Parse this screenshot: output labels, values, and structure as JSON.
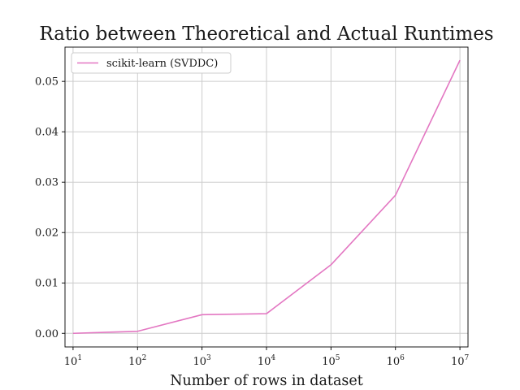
{
  "chart_data": {
    "type": "line",
    "title": "Ratio between Theoretical and Actual Runtimes",
    "xlabel": "Number of rows in dataset",
    "ylabel": "",
    "x_scale": "log",
    "x_ticks": [
      {
        "base": "10",
        "exp": "1",
        "value": 10
      },
      {
        "base": "10",
        "exp": "2",
        "value": 100
      },
      {
        "base": "10",
        "exp": "3",
        "value": 1000
      },
      {
        "base": "10",
        "exp": "4",
        "value": 10000
      },
      {
        "base": "10",
        "exp": "5",
        "value": 100000
      },
      {
        "base": "10",
        "exp": "6",
        "value": 1000000
      },
      {
        "base": "10",
        "exp": "7",
        "value": 10000000
      }
    ],
    "y_ticks": [
      "0.00",
      "0.01",
      "0.02",
      "0.03",
      "0.04",
      "0.05"
    ],
    "xlim": [
      7.5,
      13333333
    ],
    "ylim": [
      -0.0027,
      0.0568
    ],
    "grid": true,
    "legend_position": "top-left",
    "series": [
      {
        "name": "scikit-learn (SVDDC)",
        "color": "#e377c2",
        "x": [
          10,
          100,
          1000,
          10000,
          100000,
          1000000,
          10000000
        ],
        "y": [
          0.0,
          0.0004,
          0.0037,
          0.0039,
          0.0136,
          0.0274,
          0.0542
        ]
      }
    ]
  }
}
